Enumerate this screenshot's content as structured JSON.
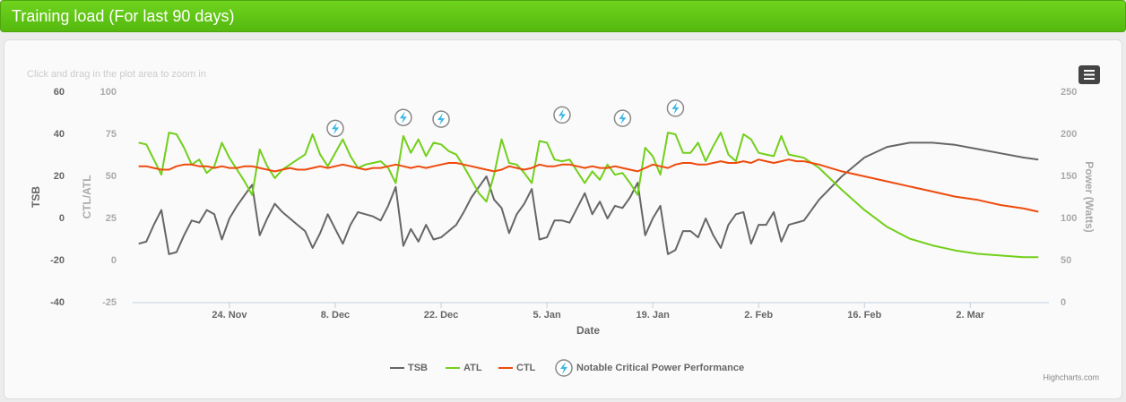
{
  "chart_data": {
    "type": "line",
    "title": "Training load (For last 90 days)",
    "hint": "Click and drag in the plot area to zoom in",
    "credits": "Highcharts.com",
    "xlabel": "Date",
    "ylabel": "TSB",
    "y2label": "CTL/ATL",
    "y3label": "Power (Watts)",
    "xlim": [
      -0.8,
      120.4
    ],
    "xticks": [
      {
        "value": 12,
        "label": "24. Nov"
      },
      {
        "value": 26,
        "label": "8. Dec"
      },
      {
        "value": 40,
        "label": "22. Dec"
      },
      {
        "value": 54,
        "label": "5. Jan"
      },
      {
        "value": 68,
        "label": "19. Jan"
      },
      {
        "value": 82,
        "label": "2. Feb"
      },
      {
        "value": 96,
        "label": "16. Feb"
      },
      {
        "value": 110,
        "label": "2. Mar"
      }
    ],
    "ylim": [
      -40,
      60
    ],
    "yticks": [
      -40,
      -20,
      0,
      20,
      40,
      60
    ],
    "y2lim": [
      -25,
      100
    ],
    "y2ticks": [
      -25,
      0,
      25,
      50,
      75,
      100
    ],
    "y3lim": [
      0,
      250
    ],
    "y3ticks": [
      0,
      50,
      100,
      150,
      200,
      250
    ],
    "x": [
      0,
      1,
      2,
      3,
      4,
      5,
      6,
      7,
      8,
      9,
      10,
      11,
      12,
      13,
      14,
      15,
      16,
      17,
      18,
      19,
      20,
      21,
      22,
      23,
      24,
      25,
      26,
      27,
      28,
      29,
      30,
      31,
      32,
      33,
      34,
      35,
      36,
      37,
      38,
      39,
      40,
      41,
      42,
      43,
      44,
      45,
      46,
      47,
      48,
      49,
      50,
      51,
      52,
      53,
      54,
      55,
      56,
      57,
      58,
      59,
      60,
      61,
      62,
      63,
      64,
      65,
      66,
      67,
      68,
      69,
      70,
      71,
      72,
      73,
      74,
      75,
      76,
      77,
      78,
      79,
      80,
      81,
      82,
      83,
      84,
      85,
      86,
      87,
      88,
      90,
      93,
      96,
      99,
      102,
      105,
      108,
      111,
      114,
      117,
      119
    ],
    "series": [
      {
        "name": "TSB",
        "color": "#666666",
        "axis": "y",
        "values": [
          -12,
          -11,
          -3,
          4,
          -17,
          -16,
          -8,
          -1,
          -2,
          4,
          2,
          -10,
          0,
          6,
          11,
          16,
          -8,
          0,
          7,
          3,
          0,
          -3,
          -6,
          -14,
          -7,
          2,
          -5,
          -12,
          -3,
          3,
          2,
          1,
          -1,
          6,
          15,
          -13,
          -5,
          -11,
          -3,
          -10,
          -9,
          -6,
          -3,
          3,
          10,
          15,
          20,
          9,
          5,
          -7,
          2,
          7,
          14,
          -10,
          -9,
          -1,
          -1,
          -2,
          5,
          12,
          2,
          8,
          0,
          6,
          5,
          10,
          17,
          -8,
          0,
          6,
          -17,
          -15,
          -6,
          -6,
          -9,
          0,
          -8,
          -14,
          -3,
          2,
          3,
          -12,
          -3,
          -3,
          3,
          -11,
          -3,
          -2,
          -1,
          9,
          20,
          29,
          34,
          36,
          36,
          35,
          33,
          31,
          29,
          28
        ]
      },
      {
        "name": "ATL",
        "color": "#72cf1a",
        "axis": "y2",
        "values": [
          70,
          69,
          60,
          51,
          76,
          75,
          67,
          57,
          60,
          52,
          56,
          70,
          61,
          54,
          47,
          39,
          66,
          56,
          49,
          54,
          57,
          60,
          63,
          75,
          63,
          56,
          64,
          72,
          62,
          55,
          57,
          58,
          59,
          55,
          46,
          74,
          64,
          72,
          62,
          70,
          69,
          65,
          63,
          56,
          48,
          40,
          35,
          51,
          72,
          58,
          57,
          52,
          46,
          71,
          70,
          60,
          59,
          60,
          53,
          46,
          53,
          48,
          57,
          51,
          52,
          46,
          39,
          67,
          62,
          51,
          76,
          75,
          64,
          64,
          70,
          59,
          68,
          76,
          63,
          59,
          75,
          72,
          64,
          63,
          62,
          74,
          63,
          62,
          61,
          55,
          42,
          30,
          20,
          13,
          9,
          6,
          4,
          3,
          2,
          2
        ]
      },
      {
        "name": "CTL",
        "color": "#ee4b0d",
        "axis": "y2",
        "values": [
          56,
          56,
          55,
          54,
          54,
          56,
          57,
          57,
          56,
          56,
          55,
          56,
          55,
          55,
          56,
          56,
          55,
          54,
          53,
          54,
          55,
          54,
          54,
          55,
          56,
          55,
          56,
          57,
          56,
          55,
          54,
          55,
          55,
          56,
          57,
          56,
          55,
          56,
          55,
          56,
          57,
          58,
          58,
          57,
          56,
          55,
          54,
          53,
          54,
          56,
          55,
          54,
          55,
          57,
          56,
          56,
          57,
          57,
          56,
          55,
          56,
          55,
          55,
          56,
          55,
          54,
          53,
          55,
          57,
          56,
          55,
          57,
          58,
          58,
          57,
          57,
          58,
          59,
          58,
          58,
          59,
          58,
          60,
          59,
          58,
          59,
          60,
          59,
          59,
          57,
          53,
          50,
          47,
          44,
          41,
          38,
          36,
          33,
          31,
          29
        ]
      },
      {
        "name": "Notable Critical Power Performance",
        "color": "#3bb8e6",
        "axis": "y3",
        "marker": "bolt",
        "x": [
          26,
          35,
          40,
          56,
          64,
          71
        ],
        "values": [
          207,
          220,
          218,
          223,
          219,
          231
        ]
      }
    ]
  }
}
